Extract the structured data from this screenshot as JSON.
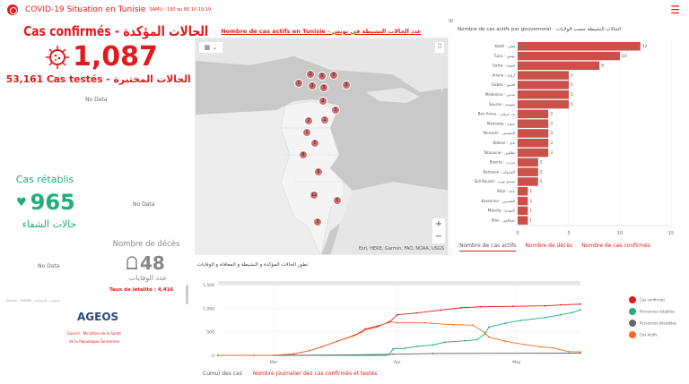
{
  "header": {
    "title": "COVID-19 Situation en Tunisie",
    "subtitle": "SAMU : 190 ou 80 10 19 19",
    "menu_icon": "hamburger-icon"
  },
  "confirmed": {
    "label": "Cas confirmés - الحالات المؤكدة",
    "value": "1,087",
    "tested": "53,161 Cas testés - الحالات المختبرة",
    "no_data": "No Data"
  },
  "recovered": {
    "label": "Cas rétablis",
    "value": "965",
    "label_ar": "حالات الشفاء",
    "no_data": "No Data"
  },
  "deaths": {
    "label": "Nombre de décès",
    "value": "48",
    "label_ar": "عدد الوفايات",
    "lethality": "Taux de létalité : 4,416",
    "no_data": "No Data"
  },
  "source_small": "Source : ONMNE المصدر : الإحصائيات",
  "ageos": {
    "logo": "AGEOS",
    "source1": "Source : Ministère de la Santé",
    "source2": "de la République Tunisienne"
  },
  "colors": {
    "accent": "#e31a1c",
    "green": "#1fae7a",
    "bar": "#c9514a",
    "orange": "#f26c22"
  },
  "map": {
    "title": "Nombre de cas actifs en Tunisie - عدد الحالات النشيطة في تونس",
    "attribution": "Esri, HERE, Garmin, FAO, NOAA, USGS",
    "zoom_in": "+",
    "zoom_out": "−",
    "markers": [
      {
        "n": "2"
      },
      {
        "n": "5"
      },
      {
        "n": "1"
      },
      {
        "n": "3"
      },
      {
        "n": "3"
      },
      {
        "n": "3"
      },
      {
        "n": "5"
      },
      {
        "n": "2"
      },
      {
        "n": "3"
      },
      {
        "n": "2"
      },
      {
        "n": "1"
      },
      {
        "n": "2"
      },
      {
        "n": "5"
      },
      {
        "n": "8"
      },
      {
        "n": "5"
      },
      {
        "n": "12"
      },
      {
        "n": "5"
      },
      {
        "n": "3"
      }
    ]
  },
  "bars": {
    "title": "Nombre de cas actifs par gouvernorat - الحالات النشيطة حسب الولايات",
    "tabs": [
      "Nombre de cas actifs",
      "Nombre de décès",
      "Nombre de cas confirmés"
    ]
  },
  "line": {
    "title": "تطور الحالات المؤكدة و النشيطة و المعافاة و الوفايات",
    "tabs": [
      "Cumul des cas",
      "Nombre journalier des cas confirmés et testés"
    ]
  },
  "chart_data": [
    {
      "type": "bar",
      "orientation": "horizontal",
      "title": "Nombre de cas actifs par gouvernorat - الحالات النشيطة حسب الولايات",
      "categories": [
        "Kebili - قبلي",
        "Tunis - تونس",
        "Gafsa - قفصة",
        "Ariana - أريانة",
        "Gabès - قابس",
        "Médenine - مدنين",
        "Sousse - سوسة",
        "Ben Arous - بن عروس",
        "Manouba - منوبة",
        "Monastir - المنستير",
        "Nabeul - نابل",
        "Tataouine - تطاوين",
        "Bizerte - بنزرت",
        "Kairouan - القيروان",
        "Sidi Bouzid - سيدي بوزيد",
        "Béja - باجة",
        "Kasserine - القصرين",
        "Mahdia - المهدية",
        "Sfax - صفاقس"
      ],
      "values": [
        12,
        10,
        8,
        5,
        5,
        5,
        5,
        3,
        3,
        3,
        3,
        3,
        2,
        2,
        2,
        1,
        1,
        1,
        1
      ],
      "xlim": [
        0,
        15
      ],
      "xticks": [
        "0",
        "5",
        "10",
        "15"
      ]
    },
    {
      "type": "line",
      "title": "تطور الحالات المؤكدة و النشيطة و المعافاة و الوفايات",
      "ylim": [
        0,
        1500
      ],
      "yticks": [
        "0",
        "500",
        "1,000",
        "1,500"
      ],
      "xlabels": [
        {
          "day": 0,
          "label": "Mar"
        },
        {
          "day": 31,
          "label": "Apr"
        },
        {
          "day": 61,
          "label": "May"
        }
      ],
      "xrange": [
        -14,
        77
      ],
      "series": [
        {
          "name": "Cas confirmés",
          "color": "#e31a1c",
          "points": [
            [
              -14,
              0
            ],
            [
              -5,
              0
            ],
            [
              0,
              2
            ],
            [
              5,
              30
            ],
            [
              9,
              100
            ],
            [
              12,
              180
            ],
            [
              16,
              300
            ],
            [
              20,
              420
            ],
            [
              22,
              500
            ],
            [
              23,
              560
            ],
            [
              26,
              620
            ],
            [
              29,
              700
            ],
            [
              31,
              860
            ],
            [
              36,
              900
            ],
            [
              42,
              960
            ],
            [
              47,
              1010
            ],
            [
              52,
              1030
            ],
            [
              60,
              1040
            ],
            [
              68,
              1050
            ],
            [
              72,
              1070
            ],
            [
              77,
              1087
            ]
          ]
        },
        {
          "name": "Personnes rétablies",
          "color": "#1fae7a",
          "points": [
            [
              -14,
              0
            ],
            [
              28,
              0
            ],
            [
              29,
              20
            ],
            [
              30,
              140
            ],
            [
              33,
              150
            ],
            [
              36,
              190
            ],
            [
              40,
              220
            ],
            [
              43,
              280
            ],
            [
              48,
              310
            ],
            [
              51,
              330
            ],
            [
              53,
              450
            ],
            [
              54,
              600
            ],
            [
              58,
              680
            ],
            [
              62,
              740
            ],
            [
              68,
              800
            ],
            [
              72,
              860
            ],
            [
              75,
              910
            ],
            [
              77,
              965
            ]
          ]
        },
        {
          "name": "Personnes décédées",
          "color": "#666666",
          "points": [
            [
              -14,
              0
            ],
            [
              0,
              0
            ],
            [
              20,
              10
            ],
            [
              30,
              25
            ],
            [
              40,
              40
            ],
            [
              77,
              48
            ]
          ]
        },
        {
          "name": "Cas Actifs",
          "color": "#f26c22",
          "points": [
            [
              -14,
              0
            ],
            [
              0,
              2
            ],
            [
              5,
              30
            ],
            [
              9,
              100
            ],
            [
              12,
              180
            ],
            [
              16,
              300
            ],
            [
              20,
              410
            ],
            [
              22,
              490
            ],
            [
              23,
              540
            ],
            [
              26,
              600
            ],
            [
              29,
              720
            ],
            [
              31,
              690
            ],
            [
              38,
              690
            ],
            [
              45,
              650
            ],
            [
              50,
              640
            ],
            [
              53,
              480
            ],
            [
              54,
              390
            ],
            [
              58,
              300
            ],
            [
              63,
              230
            ],
            [
              67,
              180
            ],
            [
              70,
              160
            ],
            [
              74,
              80
            ],
            [
              77,
              74
            ]
          ]
        }
      ]
    }
  ]
}
